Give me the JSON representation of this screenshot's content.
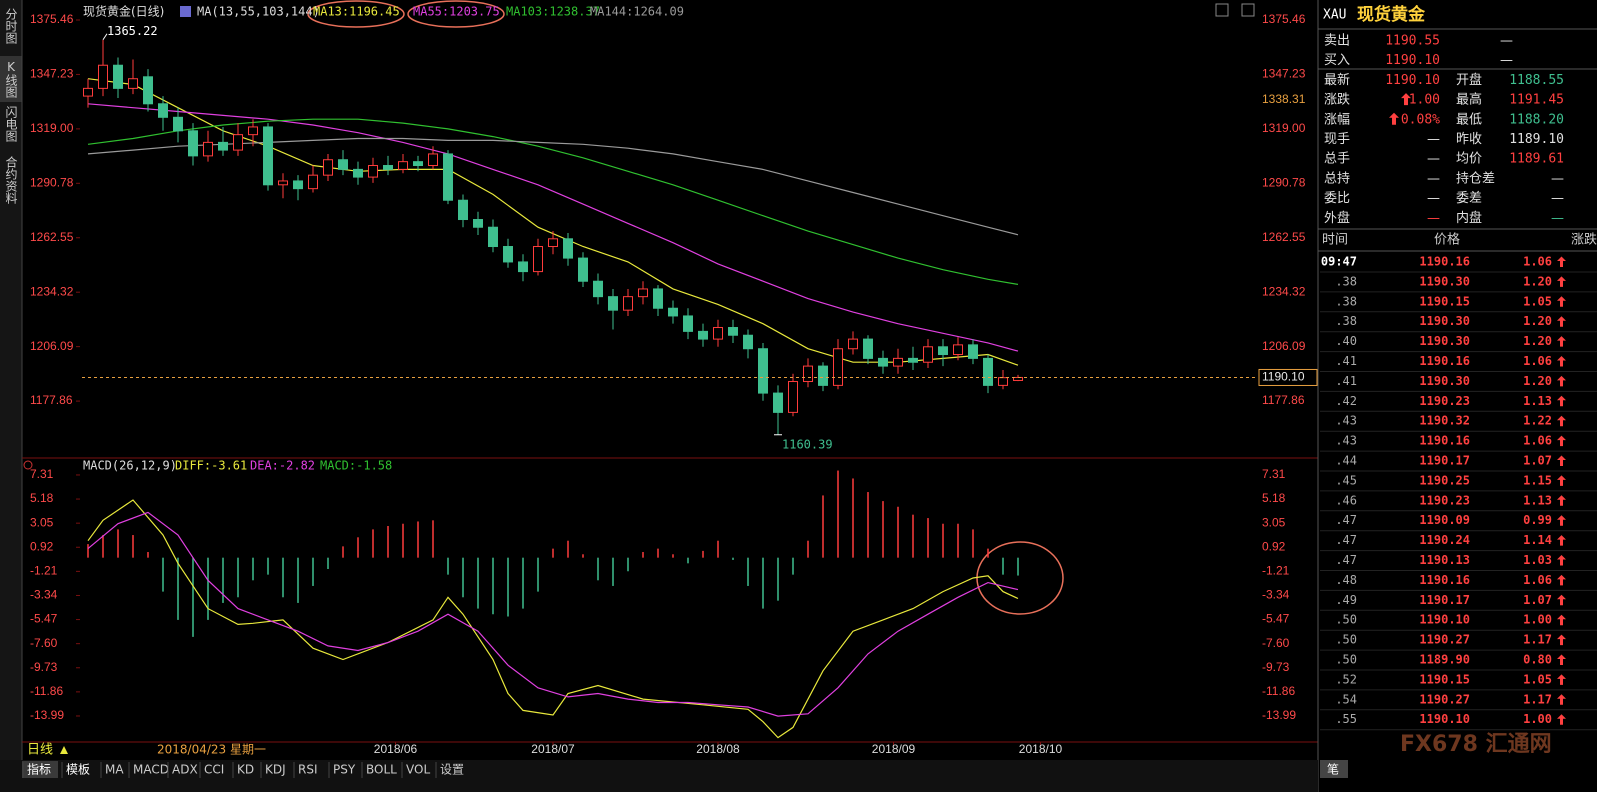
{
  "tabs": [
    "分时图",
    "K线图",
    "闪电图",
    "合约资料"
  ],
  "chart_data": [
    {
      "type": "candlestick",
      "title": "现货黄金(日线)",
      "indicator": "MA(13,55,103,144)",
      "xlim": [
        -0.4,
        77.8
      ],
      "ylim": [
        1149.9,
        1379.6
      ],
      "yticks": [
        1375.46,
        1347.23,
        {
          "value": 1319,
          "label": "1319.00"
        },
        1290.78,
        1262.55,
        1234.32,
        1206.09,
        1177.86
      ],
      "up_color": "#ff3c3c",
      "down_color": "#3fbf8f",
      "open": [
        1336,
        1340,
        1352,
        1340,
        1346,
        1332,
        1325,
        1318,
        1305,
        1312,
        1308,
        1316,
        1320,
        1290,
        1292,
        1288,
        1295,
        1303,
        1298,
        1294,
        1300,
        1298,
        1302,
        1300,
        1306,
        1282,
        1272,
        1268,
        1258,
        1250,
        1245,
        1258,
        1262,
        1252,
        1240,
        1232,
        1225,
        1232,
        1236,
        1226,
        1222,
        1214,
        1210,
        1216,
        1212,
        1205,
        1182,
        1172,
        1188,
        1196,
        1186,
        1205,
        1210,
        1200,
        1196,
        1200,
        1198,
        1206,
        1202,
        1207,
        1200,
        1186,
        1188.55
      ],
      "close": [
        1340,
        1352,
        1340,
        1345,
        1332,
        1325,
        1318,
        1305,
        1312,
        1308,
        1316,
        1320,
        1290,
        1292,
        1288,
        1295,
        1303,
        1298,
        1294,
        1300,
        1298,
        1302,
        1300,
        1306,
        1282,
        1272,
        1268,
        1258,
        1250,
        1245,
        1258,
        1262,
        1252,
        1240,
        1232,
        1225,
        1232,
        1236,
        1226,
        1222,
        1214,
        1210,
        1216,
        1212,
        1205,
        1182,
        1172,
        1188,
        1196,
        1186,
        1205,
        1210,
        1200,
        1196,
        1200,
        1198,
        1206,
        1202,
        1207,
        1200,
        1186,
        1190,
        1190.1
      ],
      "high": [
        1345,
        1365.22,
        1356,
        1355,
        1350,
        1336,
        1330,
        1322,
        1318,
        1320,
        1322,
        1324,
        1322,
        1296,
        1295,
        1300,
        1306,
        1308,
        1302,
        1304,
        1305,
        1306,
        1305,
        1310,
        1308,
        1285,
        1276,
        1272,
        1262,
        1254,
        1262,
        1266,
        1265,
        1255,
        1244,
        1236,
        1236,
        1240,
        1238,
        1230,
        1226,
        1218,
        1220,
        1220,
        1215,
        1208,
        1186,
        1192,
        1200,
        1198,
        1210,
        1214,
        1212,
        1204,
        1205,
        1206,
        1210,
        1210,
        1211,
        1210,
        1202,
        1194,
        1191.45
      ],
      "low": [
        1330,
        1336,
        1335,
        1337,
        1328,
        1318,
        1312,
        1300,
        1302,
        1305,
        1305,
        1310,
        1287,
        1283,
        1282,
        1286,
        1292,
        1295,
        1290,
        1291,
        1295,
        1296,
        1297,
        1298,
        1280,
        1268,
        1264,
        1255,
        1247,
        1240,
        1243,
        1254,
        1248,
        1237,
        1228,
        1215,
        1222,
        1228,
        1222,
        1218,
        1210,
        1206,
        1206,
        1208,
        1200,
        1178,
        1160.39,
        1170,
        1185,
        1183,
        1184,
        1202,
        1197,
        1192,
        1192,
        1194,
        1195,
        1196,
        1199,
        1197,
        1182,
        1184,
        1188.2
      ],
      "series": [
        {
          "name": "MA13:1196.45",
          "color": "#e8e83c",
          "x": [
            0,
            3,
            6,
            9,
            12,
            15,
            18,
            21,
            24,
            27,
            30,
            33,
            36,
            39,
            42,
            45,
            48,
            51,
            54,
            57,
            60,
            62
          ],
          "values": [
            1345,
            1342,
            1330,
            1318,
            1310,
            1300,
            1297,
            1298,
            1298,
            1285,
            1268,
            1258,
            1250,
            1236,
            1228,
            1218,
            1205,
            1198,
            1198,
            1200,
            1202,
            1196.45
          ]
        },
        {
          "name": "MA55:1203.75",
          "color": "#e040e0",
          "x": [
            0,
            3,
            6,
            9,
            12,
            15,
            18,
            21,
            24,
            27,
            30,
            33,
            36,
            39,
            42,
            45,
            48,
            51,
            54,
            57,
            60,
            62
          ],
          "values": [
            1332,
            1330,
            1328,
            1326,
            1324,
            1321,
            1317,
            1312,
            1306,
            1298,
            1290,
            1280,
            1270,
            1260,
            1249,
            1240,
            1231,
            1224,
            1218,
            1213,
            1208,
            1203.75
          ]
        },
        {
          "name": "MA103:1238.37",
          "color": "#30c030",
          "x": [
            0,
            3,
            6,
            9,
            12,
            15,
            18,
            21,
            24,
            27,
            30,
            33,
            36,
            39,
            42,
            45,
            48,
            51,
            54,
            57,
            60,
            62
          ],
          "values": [
            1311,
            1314,
            1318,
            1321,
            1323,
            1324,
            1324,
            1322,
            1319,
            1315,
            1310,
            1304,
            1297,
            1290,
            1282,
            1274,
            1266,
            1259,
            1252,
            1246,
            1241,
            1238.37
          ]
        },
        {
          "name": "MA144:1264.09",
          "color": "#9a9a9a",
          "x": [
            0,
            3,
            6,
            9,
            12,
            15,
            18,
            21,
            24,
            27,
            30,
            33,
            36,
            39,
            42,
            45,
            48,
            51,
            54,
            57,
            60,
            62
          ],
          "values": [
            1306,
            1308,
            1310,
            1311,
            1312,
            1313,
            1314,
            1314,
            1313,
            1313,
            1312,
            1311,
            1309,
            1306,
            1302,
            1298,
            1292,
            1286,
            1280,
            1274,
            1268,
            1264.09
          ]
        }
      ],
      "axis_marker": {
        "value": 1338.31,
        "label": "1338.31"
      },
      "last_price_label": "1190.10"
    },
    {
      "type": "macd",
      "title": "MACD(26,12,9)",
      "xlim": [
        -0.4,
        77.8
      ],
      "ylim": [
        -16.29,
        8.19
      ],
      "yticks": [
        7.31,
        5.18,
        3.05,
        0.92,
        -1.21,
        -3.34,
        -5.47,
        {
          "value": -7.6,
          "label": "-7.60"
        },
        -9.73,
        -11.86,
        -13.99
      ],
      "xticks": [
        {
          "value": 20.5,
          "label": "2018/06"
        },
        {
          "value": 31,
          "label": "2018/07"
        },
        {
          "value": 42,
          "label": "2018/08"
        },
        {
          "value": 53.7,
          "label": "2018/09"
        },
        {
          "value": 63.5,
          "label": "2018/10"
        }
      ],
      "period_label": "日线",
      "cursor_label": "2018/04/23 星期一",
      "up_color": "#ff3c3c",
      "down_color": "#3fbf8f",
      "histogram": {
        "name": "MACD:-1.58",
        "color": "#30c030",
        "values": [
          1.2,
          2.0,
          2.5,
          2.0,
          0.5,
          -3.0,
          -5.5,
          -7.0,
          -5.5,
          -4.0,
          -3.5,
          -2.0,
          -1.5,
          -3.5,
          -4.0,
          -2.5,
          -1.0,
          1.0,
          1.8,
          2.5,
          2.8,
          3.0,
          3.2,
          3.3,
          -1.5,
          -3.5,
          -4.5,
          -5.0,
          -5.2,
          -4.5,
          -3.0,
          0.8,
          1.5,
          0.3,
          -2.0,
          -2.5,
          -1.2,
          0.5,
          0.8,
          0.3,
          -0.5,
          0.6,
          1.5,
          -0.2,
          -2.5,
          -4.5,
          -3.8,
          -1.5,
          1.5,
          5.5,
          7.7,
          7.0,
          5.8,
          5.0,
          4.5,
          3.8,
          3.5,
          3.0,
          3.0,
          2.5,
          0.8,
          -1.5,
          -1.58
        ]
      },
      "series": [
        {
          "name": "DIFF:-3.61",
          "color": "#e8e83c",
          "x": [
            0,
            1,
            3,
            5,
            6,
            8,
            10,
            11,
            13,
            15,
            17,
            20,
            23,
            24,
            25,
            27,
            28,
            29,
            31,
            32,
            34,
            37,
            41,
            44,
            45,
            46,
            47,
            49,
            51,
            53,
            55,
            57,
            59,
            60,
            61,
            62
          ],
          "values": [
            1.5,
            3.3,
            5.1,
            2.0,
            -0.5,
            -4.5,
            -5.9,
            -5.8,
            -5.5,
            -8.0,
            -9.0,
            -7.5,
            -5.5,
            -3.5,
            -5.0,
            -9.0,
            -12.0,
            -13.5,
            -13.9,
            -12.0,
            -11.3,
            -12.5,
            -13.0,
            -13.4,
            -14.5,
            -15.9,
            -15.0,
            -10.0,
            -6.5,
            -5.5,
            -4.5,
            -3.0,
            -1.8,
            -1.6,
            -3.0,
            -3.61
          ]
        },
        {
          "name": "DEA:-2.82",
          "color": "#e040e0",
          "x": [
            0,
            2,
            4,
            6,
            8,
            10,
            12,
            14,
            16,
            18,
            20,
            22,
            24,
            26,
            28,
            30,
            32,
            34,
            36,
            38,
            40,
            42,
            44,
            46,
            48,
            50,
            52,
            54,
            56,
            58,
            60,
            62
          ],
          "values": [
            0.8,
            3.0,
            4.0,
            2.0,
            -2.0,
            -4.5,
            -5.5,
            -6.5,
            -7.8,
            -8.2,
            -7.5,
            -6.5,
            -5.0,
            -6.5,
            -9.5,
            -11.5,
            -12.3,
            -12.0,
            -12.5,
            -12.8,
            -12.8,
            -13.0,
            -13.2,
            -14.0,
            -13.8,
            -11.5,
            -8.5,
            -6.5,
            -5.0,
            -3.5,
            -2.2,
            -2.82
          ]
        }
      ]
    }
  ],
  "toolbar": [
    "指标",
    "模板",
    "MA",
    "MACD",
    "ADX",
    "CCI",
    "KD",
    "KDJ",
    "RSI",
    "PSY",
    "BOLL",
    "VOL",
    "设置"
  ],
  "quote": {
    "symbol": "XAU",
    "name": "现货黄金",
    "rows": [
      [
        "卖出",
        "1190.55",
        "—"
      ],
      [
        "买入",
        "1190.10",
        "—"
      ],
      [
        "最新",
        "1190.10",
        "开盘",
        "1188.55"
      ],
      [
        "涨跌",
        "1.00",
        "最高",
        "1191.45"
      ],
      [
        "涨幅",
        "0.08%",
        "最低",
        "1188.20"
      ],
      [
        "现手",
        "—",
        "昨收",
        "1189.10"
      ],
      [
        "总手",
        "—",
        "均价",
        "1189.61"
      ],
      [
        "总持",
        "—",
        "持仓差",
        "—"
      ],
      [
        "委比",
        "—",
        "委差",
        "—"
      ],
      [
        "外盘",
        "—",
        "内盘",
        "—"
      ]
    ]
  },
  "ticks_table": {
    "header": [
      "时间",
      "价格",
      "涨跌"
    ],
    "rows": [
      [
        "09:47",
        "1190.16",
        "1.06"
      ],
      [
        ".38",
        "1190.30",
        "1.20"
      ],
      [
        ".38",
        "1190.15",
        "1.05"
      ],
      [
        ".38",
        "1190.30",
        "1.20"
      ],
      [
        ".40",
        "1190.30",
        "1.20"
      ],
      [
        ".41",
        "1190.16",
        "1.06"
      ],
      [
        ".41",
        "1190.30",
        "1.20"
      ],
      [
        ".42",
        "1190.23",
        "1.13"
      ],
      [
        ".43",
        "1190.32",
        "1.22"
      ],
      [
        ".43",
        "1190.16",
        "1.06"
      ],
      [
        ".44",
        "1190.17",
        "1.07"
      ],
      [
        ".45",
        "1190.25",
        "1.15"
      ],
      [
        ".46",
        "1190.23",
        "1.13"
      ],
      [
        ".47",
        "1190.09",
        "0.99"
      ],
      [
        ".47",
        "1190.24",
        "1.14"
      ],
      [
        ".47",
        "1190.13",
        "1.03"
      ],
      [
        ".48",
        "1190.16",
        "1.06"
      ],
      [
        ".49",
        "1190.17",
        "1.07"
      ],
      [
        ".50",
        "1190.10",
        "1.00"
      ],
      [
        ".50",
        "1190.27",
        "1.17"
      ],
      [
        ".50",
        "1189.90",
        "0.80"
      ],
      [
        ".52",
        "1190.15",
        "1.05"
      ],
      [
        ".54",
        "1190.27",
        "1.17"
      ],
      [
        ".55",
        "1190.10",
        "1.00"
      ]
    ],
    "tab": "笔"
  },
  "watermark": "FX678 汇通网"
}
